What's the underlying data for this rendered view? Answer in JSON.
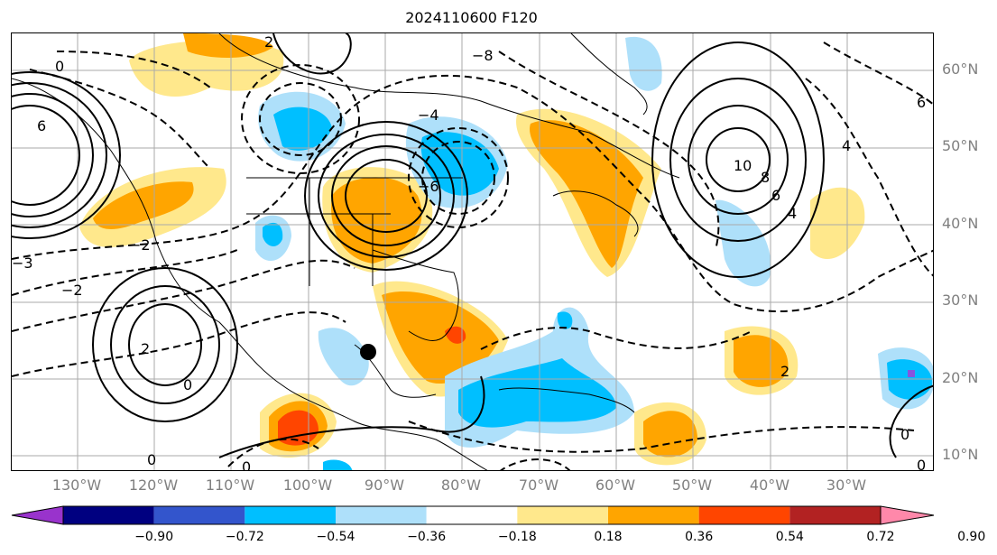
{
  "title": "2024110600 F120",
  "lat_labels": [
    "60°N",
    "50°N",
    "40°N",
    "30°N",
    "20°N",
    "10°N"
  ],
  "lon_labels": [
    "130°W",
    "120°W",
    "110°W",
    "100°W",
    "90°W",
    "80°W",
    "70°W",
    "60°W",
    "50°W",
    "40°W",
    "30°W"
  ],
  "colorbar": {
    "ticks": [
      "−0.90",
      "−0.72",
      "−0.54",
      "−0.36",
      "−0.18",
      "0.18",
      "0.36",
      "0.54",
      "0.72",
      "0.90"
    ],
    "colors": [
      "#9933cc",
      "#000080",
      "#3355cc",
      "#00bfff",
      "#aee0fa",
      "#ffffff",
      "#ffe88c",
      "#ffa500",
      "#ff4500",
      "#b22222",
      "#ff88aa"
    ]
  },
  "contour_labels": [
    "0",
    "2",
    "4",
    "6",
    "8",
    "10",
    "−2",
    "−3",
    "−4",
    "−6",
    "−8"
  ],
  "colors": {
    "positive": "#ffa500",
    "positive_light": "#ffe88c",
    "strong_positive": "#ff4500",
    "negative": "#00bfff",
    "negative_light": "#aee0fa",
    "marker": "#000000"
  }
}
